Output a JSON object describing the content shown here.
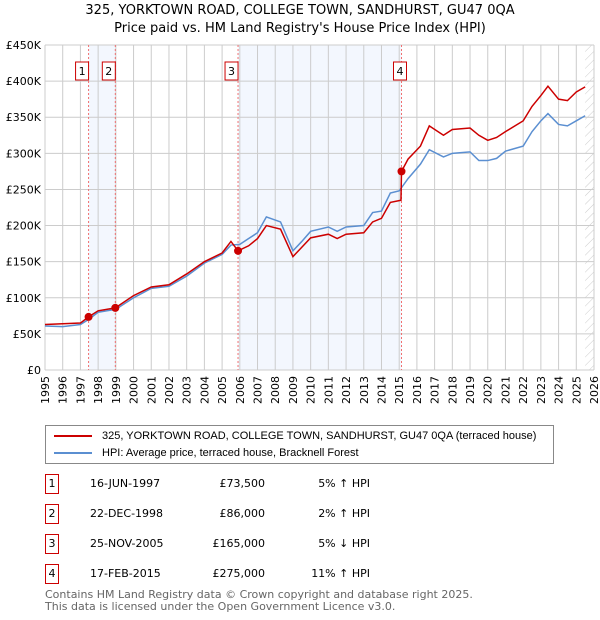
{
  "title": "325, YORKTOWN ROAD, COLLEGE TOWN, SANDHURST, GU47 0QA",
  "subtitle": "Price paid vs. HM Land Registry's House Price Index (HPI)",
  "chart_data": {
    "type": "line",
    "title": "325, YORKTOWN ROAD, COLLEGE TOWN, SANDHURST, GU47 0QA",
    "subtitle": "Price paid vs. HM Land Registry's House Price Index (HPI)",
    "xlim": [
      1995,
      2026
    ],
    "ylim": [
      0,
      450000
    ],
    "x_ticks": [
      "1995",
      "1996",
      "1997",
      "1998",
      "1999",
      "2000",
      "2001",
      "2002",
      "2003",
      "2004",
      "2005",
      "2006",
      "2007",
      "2008",
      "2009",
      "2010",
      "2011",
      "2012",
      "2013",
      "2014",
      "2015",
      "2016",
      "2017",
      "2018",
      "2019",
      "2020",
      "2021",
      "2022",
      "2023",
      "2024",
      "2025",
      "2026"
    ],
    "y_ticks": [
      {
        "v": 0,
        "l": "£0"
      },
      {
        "v": 50000,
        "l": "£50K"
      },
      {
        "v": 100000,
        "l": "£100K"
      },
      {
        "v": 150000,
        "l": "£150K"
      },
      {
        "v": 200000,
        "l": "£200K"
      },
      {
        "v": 250000,
        "l": "£250K"
      },
      {
        "v": 300000,
        "l": "£300K"
      },
      {
        "v": 350000,
        "l": "£350K"
      },
      {
        "v": 400000,
        "l": "£400K"
      },
      {
        "v": 450000,
        "l": "£450K"
      }
    ],
    "grid": true,
    "shaded_ranges": [
      [
        1997.46,
        1998.97
      ],
      [
        2005.9,
        2015.13
      ]
    ],
    "forecast_from": 2025.5,
    "series": [
      {
        "name": "325, YORKTOWN ROAD, COLLEGE TOWN, SANDHURST, GU47 0QA (terraced house)",
        "color": "#cc0000",
        "points": [
          [
            1995,
            63000
          ],
          [
            1996,
            64000
          ],
          [
            1997,
            65000
          ],
          [
            1997.46,
            73500
          ],
          [
            1998,
            82000
          ],
          [
            1998.97,
            86000
          ],
          [
            2000,
            103000
          ],
          [
            2001,
            115000
          ],
          [
            2002,
            118000
          ],
          [
            2003,
            133000
          ],
          [
            2004,
            150000
          ],
          [
            2005,
            162000
          ],
          [
            2005.5,
            178000
          ],
          [
            2005.9,
            165000
          ],
          [
            2006.5,
            172000
          ],
          [
            2007,
            182000
          ],
          [
            2007.5,
            200000
          ],
          [
            2008.3,
            195000
          ],
          [
            2009,
            157000
          ],
          [
            2009.5,
            170000
          ],
          [
            2010,
            183000
          ],
          [
            2011,
            188000
          ],
          [
            2011.5,
            182000
          ],
          [
            2012,
            188000
          ],
          [
            2013,
            190000
          ],
          [
            2013.5,
            205000
          ],
          [
            2014,
            210000
          ],
          [
            2014.5,
            232000
          ],
          [
            2015.1,
            235000
          ],
          [
            2015.13,
            275000
          ],
          [
            2015.5,
            292000
          ],
          [
            2016.2,
            310000
          ],
          [
            2016.7,
            338000
          ],
          [
            2017.5,
            325000
          ],
          [
            2018,
            333000
          ],
          [
            2019,
            335000
          ],
          [
            2019.5,
            325000
          ],
          [
            2020,
            318000
          ],
          [
            2020.5,
            322000
          ],
          [
            2021,
            330000
          ],
          [
            2022,
            345000
          ],
          [
            2022.5,
            365000
          ],
          [
            2023,
            380000
          ],
          [
            2023.4,
            393000
          ],
          [
            2024,
            375000
          ],
          [
            2024.5,
            373000
          ],
          [
            2025,
            385000
          ],
          [
            2025.5,
            392000
          ]
        ]
      },
      {
        "name": "HPI: Average price, terraced house, Bracknell Forest",
        "color": "#5b8fd1",
        "points": [
          [
            1995,
            61000
          ],
          [
            1996,
            60000
          ],
          [
            1997,
            63000
          ],
          [
            1997.46,
            70000
          ],
          [
            1998,
            80000
          ],
          [
            1999,
            84000
          ],
          [
            2000,
            100000
          ],
          [
            2001,
            113000
          ],
          [
            2002,
            116000
          ],
          [
            2003,
            130000
          ],
          [
            2004,
            148000
          ],
          [
            2005,
            160000
          ],
          [
            2005.5,
            173000
          ],
          [
            2006,
            174000
          ],
          [
            2006.5,
            182000
          ],
          [
            2007,
            190000
          ],
          [
            2007.5,
            212000
          ],
          [
            2008.3,
            205000
          ],
          [
            2009,
            165000
          ],
          [
            2009.5,
            178000
          ],
          [
            2010,
            192000
          ],
          [
            2011,
            198000
          ],
          [
            2011.5,
            192000
          ],
          [
            2012,
            198000
          ],
          [
            2013,
            200000
          ],
          [
            2013.5,
            218000
          ],
          [
            2014,
            220000
          ],
          [
            2014.5,
            245000
          ],
          [
            2015,
            248000
          ],
          [
            2015.5,
            265000
          ],
          [
            2016.2,
            285000
          ],
          [
            2016.7,
            305000
          ],
          [
            2017.5,
            295000
          ],
          [
            2018,
            300000
          ],
          [
            2019,
            302000
          ],
          [
            2019.5,
            290000
          ],
          [
            2020,
            290000
          ],
          [
            2020.5,
            293000
          ],
          [
            2021,
            303000
          ],
          [
            2022,
            310000
          ],
          [
            2022.5,
            330000
          ],
          [
            2023,
            345000
          ],
          [
            2023.4,
            355000
          ],
          [
            2024,
            340000
          ],
          [
            2024.5,
            338000
          ],
          [
            2025,
            345000
          ],
          [
            2025.5,
            352000
          ]
        ]
      }
    ],
    "sales": [
      {
        "n": "1",
        "x": 1997.46,
        "v": 73500
      },
      {
        "n": "2",
        "x": 1998.97,
        "v": 86000
      },
      {
        "n": "3",
        "x": 2005.9,
        "v": 165000
      },
      {
        "n": "4",
        "x": 2015.13,
        "v": 275000
      }
    ]
  },
  "legend": {
    "red": "325, YORKTOWN ROAD, COLLEGE TOWN, SANDHURST, GU47 0QA (terraced house)",
    "blue": "HPI: Average price, terraced house, Bracknell Forest"
  },
  "table": [
    {
      "n": "1",
      "date": "16-JUN-1997",
      "price": "£73,500",
      "hpi": "5% ↑ HPI"
    },
    {
      "n": "2",
      "date": "22-DEC-1998",
      "price": "£86,000",
      "hpi": "2% ↑ HPI"
    },
    {
      "n": "3",
      "date": "25-NOV-2005",
      "price": "£165,000",
      "hpi": "5% ↓ HPI"
    },
    {
      "n": "4",
      "date": "17-FEB-2015",
      "price": "£275,000",
      "hpi": "11% ↑ HPI"
    }
  ],
  "footer": {
    "line1": "Contains HM Land Registry data © Crown copyright and database right 2025.",
    "line2": "This data is licensed under the Open Government Licence v3.0."
  }
}
